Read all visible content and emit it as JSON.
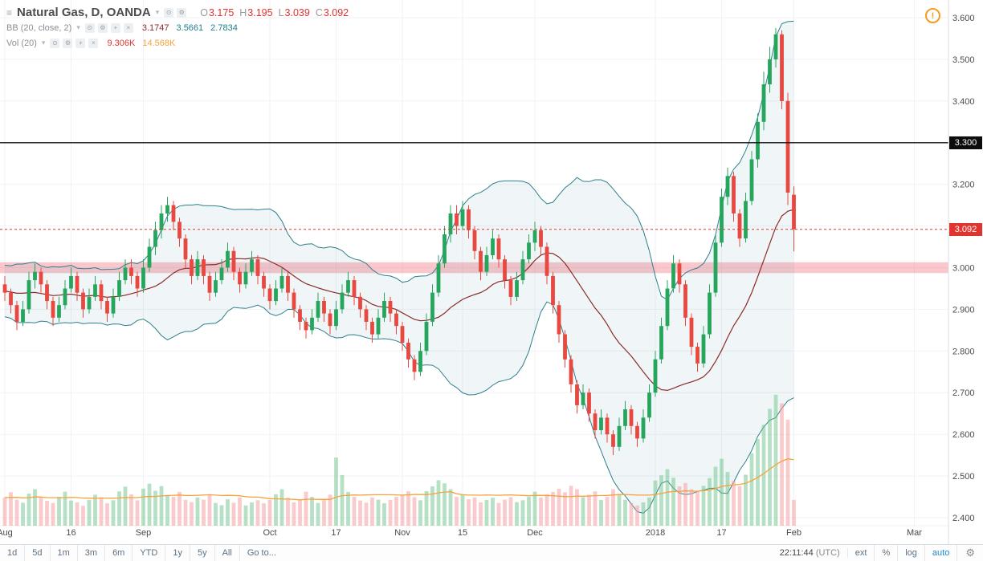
{
  "legend": {
    "symbol_title": "Natural Gas, D, OANDA",
    "ohlc": {
      "o_label": "O",
      "o_value": "3.175",
      "h_label": "H",
      "h_value": "3.195",
      "l_label": "L",
      "l_value": "3.039",
      "c_label": "C",
      "c_value": "3.092"
    },
    "indicators": [
      {
        "name": "BB (20, close, 2)",
        "values": [
          "3.1747",
          "3.5661",
          "2.7834"
        ]
      },
      {
        "name": "Vol (20)",
        "values": [
          "9.306K",
          "14.568K"
        ]
      }
    ]
  },
  "warning_icon_glyph": "!",
  "price_scale": {
    "line_badge": "3.300",
    "last_price_badge": "3.092"
  },
  "toolbar": {
    "ranges": [
      "1d",
      "5d",
      "1m",
      "3m",
      "6m",
      "YTD",
      "1y",
      "5y",
      "All"
    ],
    "goto_label": "Go to...",
    "clock_time": "22:11:44",
    "clock_tz": "(UTC)",
    "modes": [
      "ext",
      "%",
      "log",
      "auto"
    ],
    "active_mode": "auto"
  },
  "chart_data": {
    "type": "candlestick",
    "title": "Natural Gas, D, OANDA",
    "interval": "D",
    "exchange": "OANDA",
    "indicators": [
      "BB (20, close, 2)",
      "Vol (20)"
    ],
    "price_range": [
      2.4,
      3.6
    ],
    "grid_step": 0.1,
    "price_ticks": [
      {
        "t": "3.600",
        "v": 3.6
      },
      {
        "t": "3.500",
        "v": 3.5
      },
      {
        "t": "3.400",
        "v": 3.4
      },
      {
        "t": "3.200",
        "v": 3.2
      },
      {
        "t": "3.000",
        "v": 3.0
      },
      {
        "t": "2.900",
        "v": 2.9
      },
      {
        "t": "2.800",
        "v": 2.8
      },
      {
        "t": "2.700",
        "v": 2.7
      },
      {
        "t": "2.600",
        "v": 2.6
      },
      {
        "t": "2.500",
        "v": 2.5
      },
      {
        "t": "2.400",
        "v": 2.4
      }
    ],
    "time_ticks": [
      {
        "t": "Aug",
        "i": 0
      },
      {
        "t": "16",
        "i": 11
      },
      {
        "t": "Sep",
        "i": 23
      },
      {
        "t": "Oct",
        "i": 44
      },
      {
        "t": "17",
        "i": 55
      },
      {
        "t": "Nov",
        "i": 66
      },
      {
        "t": "15",
        "i": 76
      },
      {
        "t": "Dec",
        "i": 88
      },
      {
        "t": "2018",
        "i": 108
      },
      {
        "t": "17",
        "i": 119
      },
      {
        "t": "Feb",
        "i": 131
      },
      {
        "t": "Mar",
        "i": 151
      }
    ],
    "levels": {
      "line": 3.3,
      "last_price": 3.092,
      "band_center": 3.0,
      "band_half": 0.013
    },
    "seed_closes": [
      2.96,
      2.93,
      2.9,
      2.94,
      2.98,
      3.01,
      2.97,
      2.93,
      2.89,
      2.92,
      2.96,
      2.99,
      2.95,
      2.91,
      2.94,
      2.97,
      2.93,
      2.9,
      2.96
    ],
    "seed_volumes": [
      11,
      9,
      12,
      10,
      8,
      11,
      13,
      9,
      10,
      12,
      8,
      9,
      11,
      10,
      12,
      9,
      8,
      10,
      11
    ],
    "candles": [
      [
        2.96,
        2.98,
        2.92,
        2.94,
        10.2
      ],
      [
        2.94,
        2.95,
        2.89,
        2.91,
        12.1
      ],
      [
        2.91,
        2.92,
        2.85,
        2.87,
        9.4
      ],
      [
        2.87,
        2.92,
        2.86,
        2.9,
        8.3
      ],
      [
        2.9,
        2.99,
        2.89,
        2.97,
        11.6
      ],
      [
        2.97,
        3.01,
        2.95,
        2.99,
        13.2
      ],
      [
        2.99,
        3.0,
        2.94,
        2.96,
        10.1
      ],
      [
        2.96,
        2.97,
        2.9,
        2.92,
        9.0
      ],
      [
        2.92,
        2.93,
        2.86,
        2.88,
        8.2
      ],
      [
        2.88,
        2.93,
        2.87,
        2.91,
        10.4
      ],
      [
        2.91,
        2.97,
        2.9,
        2.95,
        12.3
      ],
      [
        2.95,
        3.0,
        2.94,
        2.98,
        9.1
      ],
      [
        2.98,
        2.99,
        2.92,
        2.94,
        8.4
      ],
      [
        2.94,
        2.95,
        2.88,
        2.9,
        7.2
      ],
      [
        2.9,
        2.95,
        2.89,
        2.93,
        9.3
      ],
      [
        2.93,
        2.98,
        2.92,
        2.96,
        11.2
      ],
      [
        2.96,
        2.97,
        2.9,
        2.92,
        10.3
      ],
      [
        2.92,
        2.93,
        2.87,
        2.89,
        8.1
      ],
      [
        2.89,
        2.95,
        2.88,
        2.93,
        9.2
      ],
      [
        2.93,
        2.99,
        2.92,
        2.97,
        12.4
      ],
      [
        2.97,
        3.02,
        2.96,
        3.0,
        14.1
      ],
      [
        3.0,
        3.02,
        2.96,
        2.98,
        11.3
      ],
      [
        2.98,
        2.99,
        2.93,
        2.95,
        9.2
      ],
      [
        2.95,
        3.02,
        2.94,
        3.0,
        13.4
      ],
      [
        3.0,
        3.07,
        2.99,
        3.05,
        15.2
      ],
      [
        3.05,
        3.11,
        3.03,
        3.09,
        12.6
      ],
      [
        3.09,
        3.15,
        3.07,
        3.13,
        14.3
      ],
      [
        3.13,
        3.17,
        3.11,
        3.15,
        11.1
      ],
      [
        3.15,
        3.16,
        3.09,
        3.11,
        10.4
      ],
      [
        3.11,
        3.12,
        3.05,
        3.07,
        12.2
      ],
      [
        3.07,
        3.08,
        3.0,
        3.02,
        9.3
      ],
      [
        3.02,
        3.03,
        2.96,
        2.98,
        8.5
      ],
      [
        2.98,
        3.04,
        2.97,
        3.02,
        10.2
      ],
      [
        3.02,
        3.03,
        2.96,
        2.98,
        9.4
      ],
      [
        2.98,
        2.99,
        2.92,
        2.94,
        11.3
      ],
      [
        2.94,
        2.99,
        2.93,
        2.97,
        8.2
      ],
      [
        2.97,
        3.02,
        2.96,
        3.0,
        7.4
      ],
      [
        3.0,
        3.06,
        2.99,
        3.04,
        9.5
      ],
      [
        3.04,
        3.05,
        2.97,
        2.99,
        8.3
      ],
      [
        2.99,
        3.0,
        2.94,
        2.96,
        10.2
      ],
      [
        2.96,
        3.01,
        2.95,
        2.99,
        7.3
      ],
      [
        2.99,
        3.04,
        2.98,
        3.02,
        8.4
      ],
      [
        3.02,
        3.03,
        2.96,
        2.98,
        9.2
      ],
      [
        2.98,
        2.99,
        2.93,
        2.95,
        8.1
      ],
      [
        2.95,
        2.96,
        2.9,
        2.92,
        9.3
      ],
      [
        2.92,
        2.97,
        2.91,
        2.95,
        11.4
      ],
      [
        2.95,
        3.0,
        2.94,
        2.98,
        13.2
      ],
      [
        2.98,
        2.99,
        2.92,
        2.94,
        10.1
      ],
      [
        2.94,
        2.95,
        2.88,
        2.9,
        8.4
      ],
      [
        2.9,
        2.91,
        2.85,
        2.87,
        9.2
      ],
      [
        2.87,
        2.88,
        2.83,
        2.85,
        12.3
      ],
      [
        2.85,
        2.9,
        2.84,
        2.88,
        10.4
      ],
      [
        2.88,
        2.94,
        2.87,
        2.92,
        8.2
      ],
      [
        2.92,
        2.93,
        2.87,
        2.89,
        9.5
      ],
      [
        2.89,
        2.9,
        2.84,
        2.86,
        11.2
      ],
      [
        2.86,
        2.92,
        2.85,
        2.9,
        24.6
      ],
      [
        2.9,
        2.96,
        2.89,
        2.94,
        18.3
      ],
      [
        2.94,
        2.99,
        2.93,
        2.97,
        12.2
      ],
      [
        2.97,
        2.98,
        2.91,
        2.93,
        10.4
      ],
      [
        2.93,
        2.94,
        2.88,
        2.9,
        9.1
      ],
      [
        2.9,
        2.91,
        2.85,
        2.87,
        8.3
      ],
      [
        2.87,
        2.88,
        2.82,
        2.84,
        10.2
      ],
      [
        2.84,
        2.9,
        2.83,
        2.88,
        9.4
      ],
      [
        2.88,
        2.94,
        2.87,
        2.92,
        8.1
      ],
      [
        2.92,
        2.93,
        2.87,
        2.89,
        9.3
      ],
      [
        2.89,
        2.9,
        2.84,
        2.86,
        10.4
      ],
      [
        2.86,
        2.87,
        2.8,
        2.82,
        11.2
      ],
      [
        2.82,
        2.83,
        2.76,
        2.78,
        12.4
      ],
      [
        2.78,
        2.79,
        2.73,
        2.75,
        10.3
      ],
      [
        2.75,
        2.82,
        2.74,
        2.8,
        9.2
      ],
      [
        2.8,
        2.89,
        2.79,
        2.87,
        12.5
      ],
      [
        2.87,
        2.96,
        2.86,
        2.94,
        14.2
      ],
      [
        2.94,
        3.03,
        2.93,
        3.01,
        16.4
      ],
      [
        3.01,
        3.1,
        3.0,
        3.08,
        15.3
      ],
      [
        3.08,
        3.15,
        3.06,
        3.13,
        13.2
      ],
      [
        3.13,
        3.15,
        3.08,
        3.1,
        10.4
      ],
      [
        3.1,
        3.16,
        3.09,
        3.14,
        11.3
      ],
      [
        3.14,
        3.15,
        3.07,
        3.09,
        9.5
      ],
      [
        3.09,
        3.1,
        3.02,
        3.04,
        10.2
      ],
      [
        3.04,
        3.05,
        2.97,
        2.99,
        8.4
      ],
      [
        2.99,
        3.05,
        2.98,
        3.03,
        9.3
      ],
      [
        3.03,
        3.09,
        3.02,
        3.07,
        10.1
      ],
      [
        3.07,
        3.08,
        3.0,
        3.02,
        8.2
      ],
      [
        3.02,
        3.03,
        2.95,
        2.97,
        9.4
      ],
      [
        2.97,
        2.98,
        2.91,
        2.93,
        10.3
      ],
      [
        2.93,
        2.99,
        2.92,
        2.97,
        8.5
      ],
      [
        2.97,
        3.04,
        2.96,
        3.02,
        9.2
      ],
      [
        3.02,
        3.08,
        3.01,
        3.06,
        10.4
      ],
      [
        3.06,
        3.11,
        3.04,
        3.09,
        12.3
      ],
      [
        3.09,
        3.1,
        3.03,
        3.05,
        10.2
      ],
      [
        3.05,
        3.06,
        2.96,
        2.98,
        11.4
      ],
      [
        2.98,
        2.99,
        2.89,
        2.91,
        12.2
      ],
      [
        2.91,
        2.92,
        2.82,
        2.84,
        13.3
      ],
      [
        2.84,
        2.85,
        2.76,
        2.78,
        12.1
      ],
      [
        2.78,
        2.79,
        2.7,
        2.72,
        14.4
      ],
      [
        2.72,
        2.73,
        2.65,
        2.67,
        13.2
      ],
      [
        2.67,
        2.72,
        2.66,
        2.7,
        10.3
      ],
      [
        2.7,
        2.71,
        2.63,
        2.65,
        11.2
      ],
      [
        2.65,
        2.66,
        2.59,
        2.61,
        12.4
      ],
      [
        2.61,
        2.66,
        2.6,
        2.64,
        9.3
      ],
      [
        2.64,
        2.65,
        2.58,
        2.6,
        10.4
      ],
      [
        2.6,
        2.61,
        2.55,
        2.57,
        13.2
      ],
      [
        2.57,
        2.64,
        2.56,
        2.62,
        11.3
      ],
      [
        2.62,
        2.68,
        2.61,
        2.66,
        9.4
      ],
      [
        2.66,
        2.67,
        2.6,
        2.62,
        8.2
      ],
      [
        2.62,
        2.63,
        2.57,
        2.59,
        7.3
      ],
      [
        2.59,
        2.66,
        2.58,
        2.64,
        8.4
      ],
      [
        2.64,
        2.72,
        2.63,
        2.7,
        10.2
      ],
      [
        2.7,
        2.8,
        2.69,
        2.78,
        16.3
      ],
      [
        2.78,
        2.88,
        2.77,
        2.86,
        18.2
      ],
      [
        2.86,
        2.97,
        2.85,
        2.95,
        20.4
      ],
      [
        2.95,
        3.03,
        2.94,
        3.01,
        17.3
      ],
      [
        3.01,
        3.02,
        2.94,
        2.96,
        14.2
      ],
      [
        2.96,
        2.97,
        2.86,
        2.88,
        15.4
      ],
      [
        2.88,
        2.89,
        2.79,
        2.81,
        13.2
      ],
      [
        2.81,
        2.82,
        2.75,
        2.77,
        12.3
      ],
      [
        2.77,
        2.86,
        2.76,
        2.84,
        14.4
      ],
      [
        2.84,
        2.96,
        2.83,
        2.94,
        17.2
      ],
      [
        2.94,
        3.08,
        2.93,
        3.06,
        21.3
      ],
      [
        3.06,
        3.19,
        3.05,
        3.17,
        24.2
      ],
      [
        3.17,
        3.24,
        3.15,
        3.22,
        19.4
      ],
      [
        3.22,
        3.23,
        3.11,
        3.13,
        16.2
      ],
      [
        3.13,
        3.14,
        3.05,
        3.07,
        14.3
      ],
      [
        3.07,
        3.18,
        3.06,
        3.16,
        18.4
      ],
      [
        3.16,
        3.28,
        3.15,
        3.26,
        26.2
      ],
      [
        3.26,
        3.37,
        3.24,
        3.35,
        31.3
      ],
      [
        3.35,
        3.47,
        3.33,
        3.44,
        36.4
      ],
      [
        3.44,
        3.53,
        3.42,
        3.5,
        42.2
      ],
      [
        3.5,
        3.575,
        3.48,
        3.56,
        47.3
      ],
      [
        3.56,
        3.57,
        3.38,
        3.4,
        44.2
      ],
      [
        3.4,
        3.42,
        3.15,
        3.18,
        38.3
      ],
      [
        3.175,
        3.195,
        3.039,
        3.092,
        9.306
      ]
    ],
    "colors": {
      "up": "#26a65d",
      "down": "#e8483f",
      "vol_up": "rgba(110,196,139,0.5)",
      "vol_down": "rgba(246,160,163,0.55)",
      "bb_band": "#2d7f8c",
      "bb_fill": "rgba(45,127,140,0.07)",
      "bb_basis": "#8b2a2a",
      "vol_ma": "#f5a33b",
      "last_price": "#e0342f",
      "level_line": "#111111",
      "pink_band": "rgba(243,115,131,0.4)",
      "grid": "#f0f2f5",
      "axis_text": "#4a4a4a"
    }
  }
}
